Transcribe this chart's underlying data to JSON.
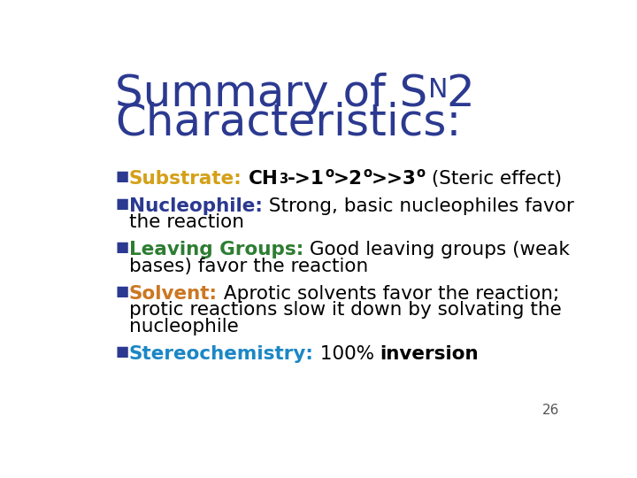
{
  "background_color": "#ffffff",
  "title_color": "#2B3990",
  "title_fontsize": 36,
  "title_font": "DejaVu Sans",
  "body_fontsize": 15.5,
  "body_font": "DejaVu Sans",
  "slide_number": "26",
  "slide_number_color": "#555555",
  "bullet_color": "#2B3990",
  "bullets": [
    {
      "label": "Substrate:",
      "label_color": "#D4A017",
      "lines": [
        [
          {
            "text": " ",
            "bold": true,
            "color": "#000000"
          },
          {
            "text": "CH",
            "bold": true,
            "color": "#000000"
          },
          {
            "text": "3",
            "bold": true,
            "color": "#000000",
            "sub": true
          },
          {
            "text": "->1",
            "bold": true,
            "color": "#000000"
          },
          {
            "text": "o",
            "bold": true,
            "color": "#000000",
            "sup": true
          },
          {
            "text": ">2",
            "bold": true,
            "color": "#000000"
          },
          {
            "text": "o",
            "bold": true,
            "color": "#000000",
            "sup": true
          },
          {
            "text": ">>3",
            "bold": true,
            "color": "#000000"
          },
          {
            "text": "o",
            "bold": true,
            "color": "#000000",
            "sup": true
          },
          {
            "text": " (Steric effect)",
            "bold": false,
            "color": "#000000"
          }
        ]
      ]
    },
    {
      "label": "Nucleophile:",
      "label_color": "#2B3990",
      "lines": [
        [
          {
            "text": " Strong, basic nucleophiles favor",
            "bold": false,
            "color": "#000000"
          }
        ],
        [
          {
            "text": "the reaction",
            "bold": false,
            "color": "#000000"
          }
        ]
      ]
    },
    {
      "label": "Leaving Groups:",
      "label_color": "#2E7D32",
      "lines": [
        [
          {
            "text": " Good leaving groups (weak",
            "bold": false,
            "color": "#000000"
          }
        ],
        [
          {
            "text": "bases) favor the reaction",
            "bold": false,
            "color": "#000000"
          }
        ]
      ]
    },
    {
      "label": "Solvent:",
      "label_color": "#CC7722",
      "lines": [
        [
          {
            "text": " Aprotic solvents favor the reaction;",
            "bold": false,
            "color": "#000000"
          }
        ],
        [
          {
            "text": "protic reactions slow it down by solvating the",
            "bold": false,
            "color": "#000000"
          }
        ],
        [
          {
            "text": "nucleophile",
            "bold": false,
            "color": "#000000"
          }
        ]
      ]
    },
    {
      "label": "Stereochemistry:",
      "label_color": "#1B87C5",
      "lines": [
        [
          {
            "text": " 100% ",
            "bold": false,
            "color": "#000000"
          },
          {
            "text": "inversion",
            "bold": true,
            "color": "#000000"
          }
        ]
      ]
    }
  ]
}
